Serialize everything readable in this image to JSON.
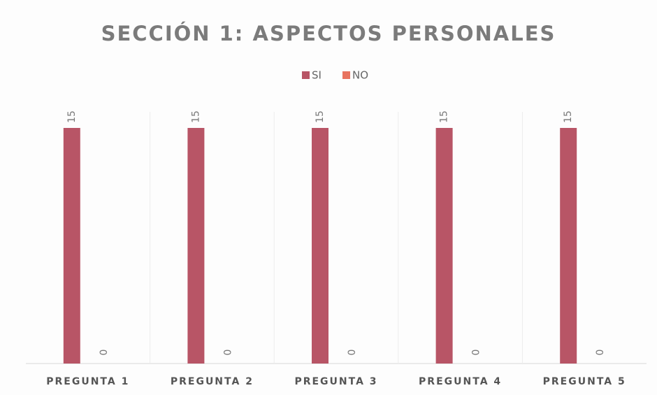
{
  "chart_data": {
    "type": "bar",
    "title": "SECCIÓN 1: ASPECTOS PERSONALES",
    "categories": [
      "PREGUNTA 1",
      "PREGUNTA 2",
      "PREGUNTA 3",
      "PREGUNTA 4",
      "PREGUNTA 5"
    ],
    "series": [
      {
        "name": "SI",
        "color": "#b85566",
        "values": [
          15,
          15,
          15,
          15,
          15
        ]
      },
      {
        "name": "NO",
        "color": "#e8735f",
        "values": [
          0,
          0,
          0,
          0,
          0
        ]
      }
    ],
    "ylim": [
      0,
      15
    ],
    "legend": "top"
  }
}
